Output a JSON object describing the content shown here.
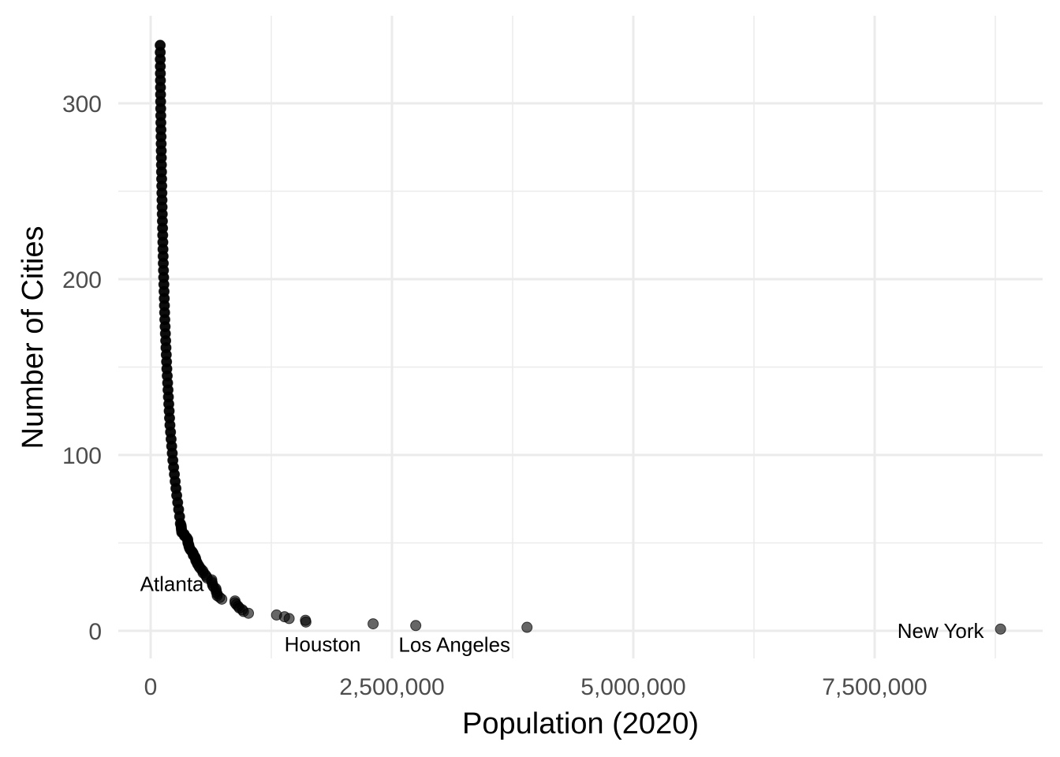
{
  "chart_data": {
    "type": "scatter",
    "title": "",
    "xlabel": "Population (2020)",
    "ylabel": "Number of Cities",
    "xlim": [
      0,
      8804190
    ],
    "ylim": [
      0,
      333
    ],
    "x_ticks": [
      0,
      2500000,
      5000000,
      7500000
    ],
    "x_tick_labels": [
      "0",
      "2,500,000",
      "5,000,000",
      "7,500,000"
    ],
    "y_ticks": [
      0,
      100,
      200,
      300
    ],
    "y_tick_labels": [
      "0",
      "100",
      "200",
      "300"
    ],
    "grid": true,
    "point_color": "#000000",
    "annotations": [
      {
        "text": "New York",
        "x": 8804190,
        "y": 1
      },
      {
        "text": "Los Angeles",
        "x": 3898747,
        "y": 2
      },
      {
        "text": "Houston",
        "x": 2304580,
        "y": 4
      },
      {
        "text": "Atlanta",
        "x": 498715,
        "y": 37
      }
    ],
    "points": [
      [
        8804190,
        1
      ],
      [
        3898747,
        2
      ],
      [
        2746388,
        3
      ],
      [
        2304580,
        4
      ],
      [
        1608139,
        5
      ],
      [
        1603797,
        6
      ],
      [
        1434625,
        7
      ],
      [
        1386932,
        8
      ],
      [
        1304379,
        9
      ],
      [
        1013240,
        10
      ],
      [
        961855,
        11
      ],
      [
        949611,
        12
      ],
      [
        918915,
        13
      ],
      [
        905748,
        14
      ],
      [
        887642,
        15
      ],
      [
        874579,
        16
      ],
      [
        873965,
        17
      ],
      [
        737015,
        18
      ],
      [
        715522,
        19
      ],
      [
        689545,
        20
      ],
      [
        689447,
        21
      ],
      [
        681054,
        22
      ],
      [
        678815,
        23
      ],
      [
        675647,
        24
      ],
      [
        652503,
        25
      ],
      [
        641903,
        26
      ],
      [
        639111,
        27
      ],
      [
        633104,
        28
      ],
      [
        633045,
        29
      ],
      [
        585708,
        30
      ],
      [
        577222,
        31
      ],
      [
        564559,
        32
      ],
      [
        542629,
        33
      ],
      [
        542107,
        34
      ],
      [
        524943,
        35
      ],
      [
        508090,
        36
      ],
      [
        498715,
        37
      ],
      [
        486051,
        38
      ],
      [
        478961,
        39
      ],
      [
        467665,
        40
      ],
      [
        466742,
        41
      ],
      [
        459470,
        42
      ],
      [
        442241,
        43
      ],
      [
        440646,
        44
      ],
      [
        429954,
        45
      ],
      [
        413066,
        46
      ],
      [
        403455,
        47
      ],
      [
        397532,
        48
      ],
      [
        394266,
        49
      ],
      [
        386261,
        50
      ],
      [
        384959,
        51
      ],
      [
        383997,
        52
      ],
      [
        372624,
        53
      ],
      [
        350964,
        54
      ],
      [
        346824,
        55
      ],
      [
        322570,
        56
      ],
      [
        320804,
        57
      ],
      [
        317863,
        58
      ],
      [
        317610,
        59
      ],
      [
        314998,
        60
      ],
      [
        308000,
        61
      ],
      [
        300000,
        65
      ],
      [
        290000,
        69
      ],
      [
        280000,
        73
      ],
      [
        270000,
        77
      ],
      [
        262000,
        81
      ],
      [
        254000,
        85
      ],
      [
        246000,
        89
      ],
      [
        238000,
        93
      ],
      [
        230000,
        97
      ],
      [
        224000,
        101
      ],
      [
        218000,
        105
      ],
      [
        212000,
        109
      ],
      [
        206000,
        113
      ],
      [
        200000,
        117
      ],
      [
        196000,
        121
      ],
      [
        192000,
        125
      ],
      [
        188000,
        129
      ],
      [
        184000,
        133
      ],
      [
        180000,
        137
      ],
      [
        176000,
        141
      ],
      [
        172000,
        145
      ],
      [
        168000,
        149
      ],
      [
        165000,
        153
      ],
      [
        162000,
        157
      ],
      [
        159000,
        161
      ],
      [
        156000,
        165
      ],
      [
        153000,
        169
      ],
      [
        150000,
        173
      ],
      [
        147000,
        177
      ],
      [
        145000,
        181
      ],
      [
        143000,
        185
      ],
      [
        141000,
        189
      ],
      [
        139000,
        193
      ],
      [
        137000,
        197
      ],
      [
        135000,
        201
      ],
      [
        133000,
        205
      ],
      [
        131000,
        209
      ],
      [
        129500,
        213
      ],
      [
        128000,
        217
      ],
      [
        126500,
        221
      ],
      [
        125000,
        225
      ],
      [
        123500,
        229
      ],
      [
        122000,
        233
      ],
      [
        120500,
        237
      ],
      [
        119000,
        241
      ],
      [
        117800,
        245
      ],
      [
        116600,
        249
      ],
      [
        115400,
        253
      ],
      [
        114200,
        257
      ],
      [
        113000,
        261
      ],
      [
        112000,
        265
      ],
      [
        111000,
        269
      ],
      [
        110000,
        273
      ],
      [
        109000,
        277
      ],
      [
        108000,
        281
      ],
      [
        107000,
        285
      ],
      [
        106000,
        289
      ],
      [
        105200,
        293
      ],
      [
        104400,
        297
      ],
      [
        103600,
        301
      ],
      [
        102800,
        305
      ],
      [
        102000,
        309
      ],
      [
        101400,
        313
      ],
      [
        100800,
        317
      ],
      [
        100300,
        321
      ],
      [
        99800,
        325
      ],
      [
        99300,
        329
      ],
      [
        98800,
        333
      ]
    ]
  }
}
